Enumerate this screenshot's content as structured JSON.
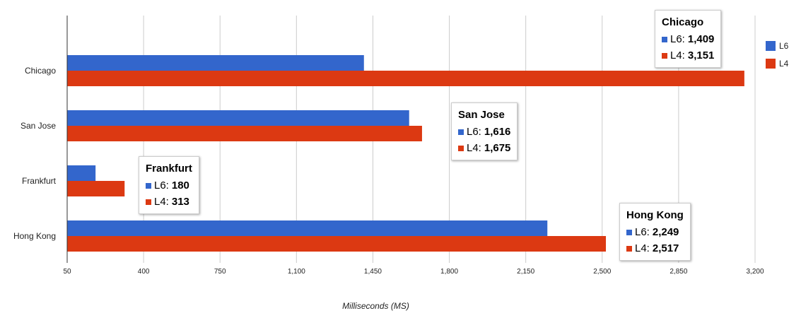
{
  "chart_data": {
    "type": "bar",
    "orientation": "horizontal",
    "categories": [
      "Chicago",
      "San Jose",
      "Frankfurt",
      "Hong Kong"
    ],
    "series": [
      {
        "name": "L6",
        "color": "#3366cc",
        "values": [
          1409,
          1616,
          180,
          2249
        ]
      },
      {
        "name": "L4",
        "color": "#dc3912",
        "values": [
          3151,
          1675,
          313,
          2517
        ]
      }
    ],
    "xlabel": "Milliseconds (MS)",
    "xlim": [
      50,
      3200
    ],
    "xticks": [
      "50",
      "400",
      "750",
      "1,100",
      "1,450",
      "1,800",
      "2,150",
      "2,500",
      "2,850",
      "3,200"
    ],
    "grid": true,
    "legend_position": "right",
    "tooltips": [
      {
        "category": "Chicago",
        "title": "Chicago",
        "rows": [
          {
            "label": "L6:",
            "value": "1,409"
          },
          {
            "label": "L4:",
            "value": "3,151"
          }
        ]
      },
      {
        "category": "San Jose",
        "title": "San Jose",
        "rows": [
          {
            "label": "L6:",
            "value": "1,616"
          },
          {
            "label": "L4:",
            "value": "1,675"
          }
        ]
      },
      {
        "category": "Frankfurt",
        "title": "Frankfurt",
        "rows": [
          {
            "label": "L6:",
            "value": "180"
          },
          {
            "label": "L4:",
            "value": "313"
          }
        ]
      },
      {
        "category": "Hong Kong",
        "title": "Hong Kong",
        "rows": [
          {
            "label": "L6:",
            "value": "2,249"
          },
          {
            "label": "L4:",
            "value": "2,517"
          }
        ]
      }
    ]
  }
}
